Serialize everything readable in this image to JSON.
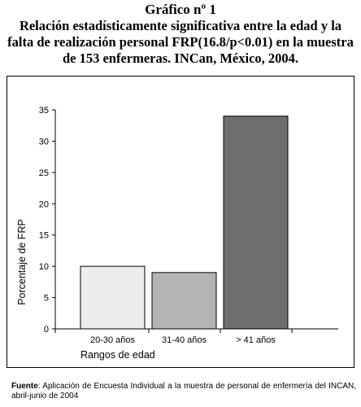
{
  "header": {
    "figure_number": "Gráfico nº 1",
    "caption": "Relación estadísticamente significativa entre la edad y la falta de realización personal FRP(16.8/p<0.01) en la muestra de 153 enfermeras. INCan, México, 2004."
  },
  "chart_data": {
    "type": "bar",
    "categories": [
      "20-30 años",
      "31-40 años",
      "> 41 años"
    ],
    "values": [
      10,
      9,
      34
    ],
    "bar_colors": [
      "#ececec",
      "#b4b4b4",
      "#6e6e6e"
    ],
    "xlabel": "Rangos de edad",
    "ylabel": "Porcentaje de FRP",
    "ylim": [
      0,
      35
    ],
    "yticks": [
      0,
      5,
      10,
      15,
      20,
      25,
      30,
      35
    ],
    "grid": false,
    "legend": "none"
  },
  "source": {
    "label": "Fuente",
    "text": ": Aplicación de Encuesta Individual a la muestra de personal de enfermería del INCAN, abril-junio de 2004"
  }
}
